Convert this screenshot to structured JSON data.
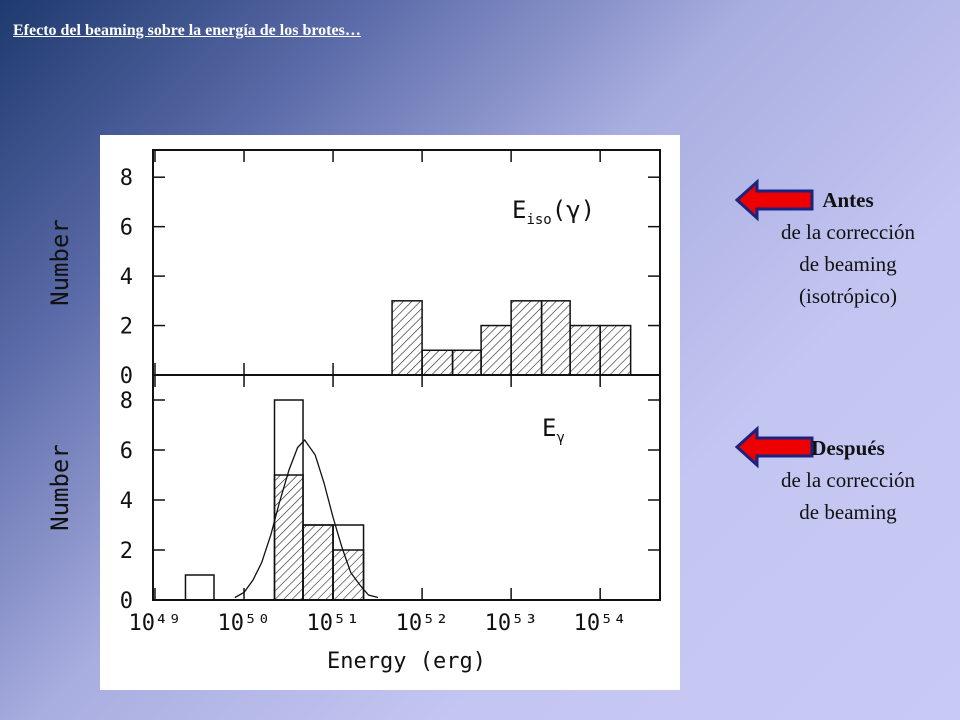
{
  "title": "Efecto del beaming sobre la energía de los brotes…",
  "annotations": [
    {
      "heading": "Antes",
      "lines": [
        "de la corrección",
        "de beaming",
        "(isotrópico)"
      ]
    },
    {
      "heading": "Después",
      "lines": [
        "de la corrección",
        "de beaming"
      ]
    }
  ],
  "chart_data": [
    {
      "type": "histogram",
      "ylabel": "Number",
      "log_x": true,
      "label": {
        "main": "E",
        "sub": "iso",
        "rest": "(γ)"
      },
      "xlim": [
        9.5e+48,
        4.7e+54
      ],
      "ylim": [
        0,
        9.1
      ],
      "yticks": [
        0,
        2,
        4,
        6,
        8
      ],
      "bins": [
        4.6e+51,
        1e+52,
        2.2e+52,
        4.6e+52,
        1e+53,
        2.2e+53,
        4.6e+53,
        1e+54,
        2.2e+54
      ],
      "series": [
        {
          "values": [
            3,
            1,
            1,
            2,
            3,
            3,
            2,
            2
          ],
          "fill": "hatch"
        }
      ]
    },
    {
      "type": "histogram",
      "ylabel": "Number",
      "xlabel": "Energy (erg)",
      "log_x": true,
      "label": {
        "main": "E",
        "sub": "γ"
      },
      "xlim": [
        9.5e+48,
        4.7e+54
      ],
      "ylim": [
        0,
        9
      ],
      "yticks": [
        0,
        2,
        4,
        6,
        8
      ],
      "xticks": [
        {
          "value": 1e+49,
          "label": "10⁴⁹"
        },
        {
          "value": 1e+50,
          "label": "10⁵⁰"
        },
        {
          "value": 1e+51,
          "label": "10⁵¹"
        },
        {
          "value": 1e+52,
          "label": "10⁵²"
        },
        {
          "value": 1e+53,
          "label": "10⁵³"
        },
        {
          "value": 1e+54,
          "label": "10⁵⁴"
        }
      ],
      "bins": [
        2.2e+49,
        4.6e+49,
        1e+50,
        2.2e+50,
        4.6e+50,
        1e+51,
        2.2e+51
      ],
      "series": [
        {
          "values": [
            1,
            0,
            0,
            8,
            3,
            3
          ],
          "fill": "none"
        },
        {
          "values": [
            0,
            0,
            0,
            5,
            3,
            2
          ],
          "fill": "hatch"
        }
      ],
      "fit": {
        "x": [
          7.9e+49,
          1e+50,
          1.26e+50,
          1.58e+50,
          2e+50,
          2.5e+50,
          3.2e+50,
          4e+50,
          4.8e+50,
          6.3e+50,
          7.9e+50,
          1e+51,
          1.26e+51,
          1.58e+51,
          2e+51,
          2.5e+51,
          3.2e+51
        ],
        "values": [
          0.1,
          0.3,
          0.8,
          1.5,
          2.6,
          3.9,
          5.2,
          6.1,
          6.4,
          5.8,
          4.7,
          3.3,
          2.1,
          1.1,
          0.6,
          0.2,
          0.1
        ]
      }
    }
  ]
}
